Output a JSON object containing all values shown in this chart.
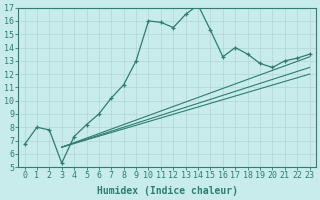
{
  "xlabel": "Humidex (Indice chaleur)",
  "bg_color": "#c8ecec",
  "grid_color": "#d8e8e8",
  "line_color": "#2e7d6e",
  "xlim": [
    -0.5,
    23.5
  ],
  "ylim": [
    5,
    17
  ],
  "xticks": [
    0,
    1,
    2,
    3,
    4,
    5,
    6,
    7,
    8,
    9,
    10,
    11,
    12,
    13,
    14,
    15,
    16,
    17,
    18,
    19,
    20,
    21,
    22,
    23
  ],
  "yticks": [
    5,
    6,
    7,
    8,
    9,
    10,
    11,
    12,
    13,
    14,
    15,
    16,
    17
  ],
  "line1_x": [
    0,
    1,
    2,
    3,
    4,
    5,
    6,
    7,
    8,
    9,
    10,
    11,
    12,
    13,
    14,
    15,
    16,
    17,
    18,
    19,
    20,
    21,
    22,
    23
  ],
  "line1_y": [
    6.7,
    8.0,
    7.8,
    5.3,
    7.3,
    8.2,
    9.0,
    10.2,
    11.2,
    13.0,
    16.0,
    15.9,
    15.5,
    16.5,
    17.2,
    15.3,
    13.3,
    14.0,
    13.5,
    12.8,
    12.5,
    13.0,
    13.2,
    13.5
  ],
  "line2_x": [
    3,
    23
  ],
  "line2_y": [
    6.5,
    13.3
  ],
  "line3_x": [
    3,
    23
  ],
  "line3_y": [
    6.5,
    12.5
  ],
  "line4_x": [
    3,
    23
  ],
  "line4_y": [
    6.5,
    12.0
  ],
  "font_size": 7,
  "tick_font_size": 6
}
